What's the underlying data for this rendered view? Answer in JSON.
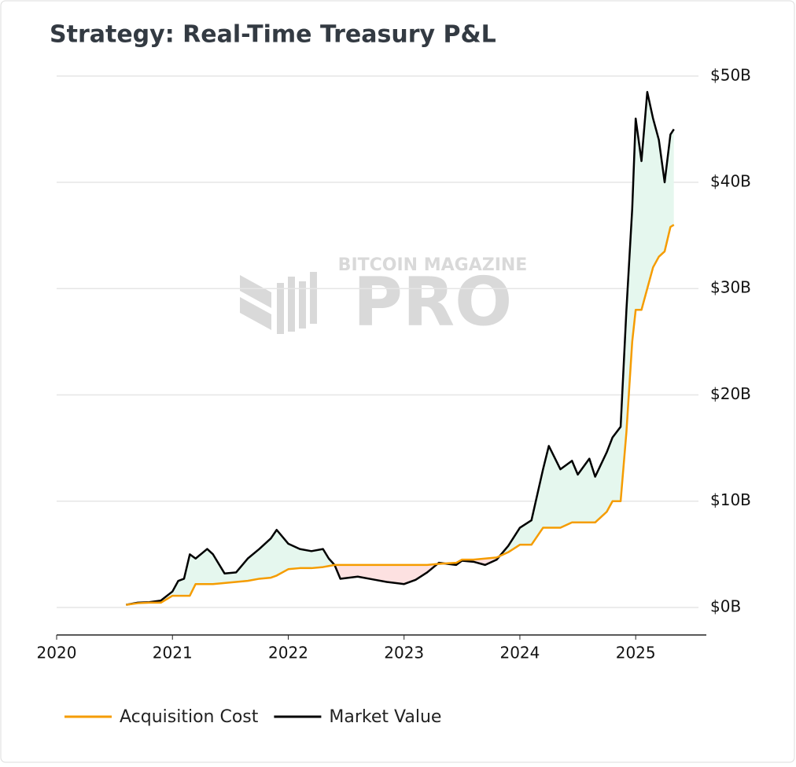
{
  "chart_data": {
    "type": "line",
    "title": "Strategy: Real-Time Treasury P&L",
    "watermark": {
      "top": "BITCOIN MAGAZINE",
      "main": "PRO"
    },
    "x": [
      2020.6,
      2020.7,
      2020.8,
      2020.9,
      2021.0,
      2021.05,
      2021.1,
      2021.15,
      2021.2,
      2021.3,
      2021.35,
      2021.45,
      2021.55,
      2021.65,
      2021.75,
      2021.85,
      2021.9,
      2022.0,
      2022.1,
      2022.2,
      2022.3,
      2022.35,
      2022.4,
      2022.45,
      2022.6,
      2022.75,
      2022.85,
      2023.0,
      2023.1,
      2023.2,
      2023.3,
      2023.45,
      2023.5,
      2023.6,
      2023.7,
      2023.8,
      2023.9,
      2024.0,
      2024.1,
      2024.2,
      2024.25,
      2024.35,
      2024.45,
      2024.5,
      2024.6,
      2024.65,
      2024.75,
      2024.8,
      2024.87,
      2024.92,
      2024.97,
      2025.0,
      2025.05,
      2025.1,
      2025.15,
      2025.2,
      2025.25,
      2025.3,
      2025.33
    ],
    "series": [
      {
        "name": "Acquisition Cost",
        "color": "#f59c00",
        "values": [
          0.25,
          0.4,
          0.45,
          0.45,
          1.1,
          1.1,
          1.1,
          1.1,
          2.2,
          2.2,
          2.2,
          2.3,
          2.4,
          2.5,
          2.7,
          2.8,
          3.0,
          3.6,
          3.7,
          3.7,
          3.8,
          3.9,
          4.0,
          4.0,
          4.0,
          4.0,
          4.0,
          4.0,
          4.0,
          4.0,
          4.1,
          4.2,
          4.5,
          4.5,
          4.6,
          4.7,
          5.2,
          5.9,
          5.9,
          7.5,
          7.5,
          7.5,
          8.0,
          8.0,
          8.0,
          8.0,
          9.0,
          10.0,
          10.0,
          16.5,
          25.0,
          28.0,
          28.0,
          30.0,
          32.0,
          33.0,
          33.5,
          35.8,
          36.0
        ]
      },
      {
        "name": "Market Value",
        "color": "#000000",
        "values": [
          0.25,
          0.45,
          0.5,
          0.65,
          1.5,
          2.5,
          2.7,
          5.0,
          4.6,
          5.5,
          5.0,
          3.2,
          3.3,
          4.6,
          5.5,
          6.5,
          7.3,
          6.0,
          5.5,
          5.3,
          5.5,
          4.6,
          4.0,
          2.7,
          2.9,
          2.6,
          2.4,
          2.2,
          2.6,
          3.3,
          4.2,
          4.0,
          4.4,
          4.3,
          4.0,
          4.5,
          5.8,
          7.5,
          8.2,
          13.0,
          15.2,
          13.0,
          13.8,
          12.5,
          14.0,
          12.3,
          14.6,
          16.0,
          17.0,
          28.0,
          37.5,
          46.0,
          42.0,
          48.5,
          46.0,
          44.0,
          40.0,
          44.5,
          45.0
        ]
      }
    ],
    "xlim": [
      2020,
      2025.61
    ],
    "xticks": [
      2020,
      2021,
      2022,
      2023,
      2024,
      2025
    ],
    "ylim": [
      -2.59,
      50.5
    ],
    "yticks": [
      {
        "value": 0,
        "label": "$0B"
      },
      {
        "value": 10,
        "label": "$10B"
      },
      {
        "value": 20,
        "label": "$20B"
      },
      {
        "value": 30,
        "label": "$30B"
      },
      {
        "value": 40,
        "label": "$40B"
      },
      {
        "value": 50,
        "label": "$50B"
      }
    ],
    "grid": true
  }
}
